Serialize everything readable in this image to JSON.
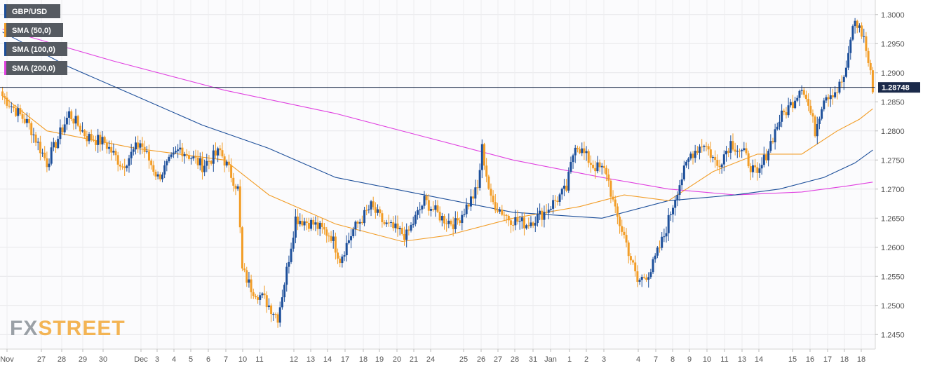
{
  "watermark": {
    "prefix": "FX",
    "suffix": "STREET"
  },
  "chart_data": {
    "type": "candlestick",
    "ylim": [
      1.2425,
      1.3025
    ],
    "y_ticks": [
      "1.2450",
      "1.2500",
      "1.2550",
      "1.2600",
      "1.2650",
      "1.2700",
      "1.2750",
      "1.2800",
      "1.2850",
      "1.2900",
      "1.2950",
      "1.3000"
    ],
    "x_tick_labels": [
      "Nov",
      "27",
      "28",
      "29",
      "30",
      "Dec",
      "3",
      "4",
      "5",
      "6",
      "7",
      "10",
      "11",
      "12",
      "13",
      "14",
      "17",
      "18",
      "19",
      "20",
      "21",
      "24",
      "25",
      "26",
      "27",
      "28",
      "31",
      "Jan",
      "1",
      "2",
      "3",
      "4",
      "7",
      "8",
      "9",
      "10",
      "11",
      "13",
      "14",
      "15",
      "16",
      "17",
      "18",
      "18"
    ],
    "current_price": 1.28748,
    "current_price_label": "1.28748",
    "bull_color": "#1d4f9a",
    "bear_color": "#f29d27",
    "legend": [
      {
        "label": "GBP/USD",
        "color": "#1d4f9a"
      },
      {
        "label": "SMA (50,0)",
        "color": "#f29d27"
      },
      {
        "label": "SMA (100,0)",
        "color": "#1d4f9a"
      },
      {
        "label": "SMA (200,0)",
        "color": "#e040e0"
      }
    ],
    "candle_close_anchors": [
      [
        0,
        1.286
      ],
      [
        12,
        1.281
      ],
      [
        20,
        1.2745
      ],
      [
        30,
        1.283
      ],
      [
        38,
        1.279
      ],
      [
        46,
        1.278
      ],
      [
        54,
        1.274
      ],
      [
        62,
        1.278
      ],
      [
        70,
        1.272
      ],
      [
        80,
        1.277
      ],
      [
        90,
        1.274
      ],
      [
        98,
        1.2765
      ],
      [
        106,
        1.27
      ],
      [
        108,
        1.256
      ],
      [
        112,
        1.253
      ],
      [
        118,
        1.251
      ],
      [
        124,
        1.248
      ],
      [
        128,
        1.256
      ],
      [
        132,
        1.265
      ],
      [
        140,
        1.264
      ],
      [
        148,
        1.262
      ],
      [
        152,
        1.258
      ],
      [
        158,
        1.263
      ],
      [
        166,
        1.267
      ],
      [
        172,
        1.264
      ],
      [
        182,
        1.262
      ],
      [
        190,
        1.268
      ],
      [
        198,
        1.265
      ],
      [
        204,
        1.264
      ],
      [
        214,
        1.27
      ],
      [
        216,
        1.277
      ],
      [
        220,
        1.268
      ],
      [
        228,
        1.265
      ],
      [
        236,
        1.264
      ],
      [
        244,
        1.266
      ],
      [
        254,
        1.27
      ],
      [
        258,
        1.278
      ],
      [
        266,
        1.274
      ],
      [
        272,
        1.273
      ],
      [
        276,
        1.266
      ],
      [
        280,
        1.262
      ],
      [
        286,
        1.254
      ],
      [
        292,
        1.256
      ],
      [
        298,
        1.262
      ],
      [
        304,
        1.27
      ],
      [
        310,
        1.276
      ],
      [
        316,
        1.278
      ],
      [
        322,
        1.274
      ],
      [
        328,
        1.278
      ],
      [
        334,
        1.276
      ],
      [
        340,
        1.272
      ],
      [
        346,
        1.278
      ],
      [
        350,
        1.282
      ],
      [
        356,
        1.285
      ],
      [
        360,
        1.288
      ],
      [
        364,
        1.283
      ],
      [
        366,
        1.28
      ],
      [
        370,
        1.286
      ],
      [
        376,
        1.287
      ],
      [
        380,
        1.29
      ],
      [
        382,
        1.296
      ],
      [
        384,
        1.299
      ],
      [
        388,
        1.296
      ],
      [
        392,
        1.2875
      ]
    ],
    "sma50": [
      [
        0,
        1.286
      ],
      [
        20,
        1.28
      ],
      [
        60,
        1.277
      ],
      [
        100,
        1.275
      ],
      [
        120,
        1.269
      ],
      [
        150,
        1.264
      ],
      [
        180,
        1.261
      ],
      [
        200,
        1.262
      ],
      [
        230,
        1.265
      ],
      [
        260,
        1.267
      ],
      [
        280,
        1.269
      ],
      [
        300,
        1.268
      ],
      [
        320,
        1.273
      ],
      [
        340,
        1.276
      ],
      [
        360,
        1.276
      ],
      [
        376,
        1.28
      ],
      [
        386,
        1.282
      ],
      [
        392,
        1.2838
      ]
    ],
    "sma100": [
      [
        0,
        1.297
      ],
      [
        30,
        1.291
      ],
      [
        60,
        1.286
      ],
      [
        90,
        1.281
      ],
      [
        120,
        1.277
      ],
      [
        150,
        1.272
      ],
      [
        190,
        1.269
      ],
      [
        230,
        1.266
      ],
      [
        270,
        1.265
      ],
      [
        300,
        1.268
      ],
      [
        330,
        1.269
      ],
      [
        350,
        1.27
      ],
      [
        370,
        1.272
      ],
      [
        384,
        1.2745
      ],
      [
        392,
        1.2767
      ]
    ],
    "sma200": [
      [
        0,
        1.2975
      ],
      [
        50,
        1.292
      ],
      [
        100,
        1.287
      ],
      [
        150,
        1.283
      ],
      [
        190,
        1.279
      ],
      [
        230,
        1.275
      ],
      [
        270,
        1.272
      ],
      [
        300,
        1.27
      ],
      [
        330,
        1.269
      ],
      [
        360,
        1.2695
      ],
      [
        380,
        1.2705
      ],
      [
        392,
        1.2712
      ]
    ]
  }
}
